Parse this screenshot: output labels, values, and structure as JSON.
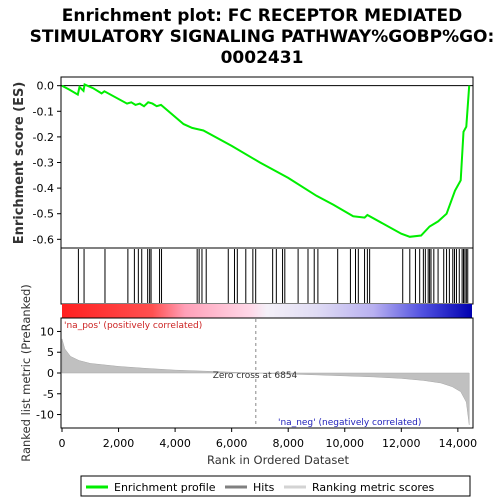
{
  "chart_data": {
    "type": "line",
    "title_lines": [
      "Enrichment plot: FC RECEPTOR MEDIATED",
      "STIMULATORY SIGNALING PATHWAY%GOBP%GO:",
      "0002431"
    ],
    "es_panel": {
      "ylabel": "Enrichment score (ES)",
      "ylim": [
        -0.63,
        0.03
      ],
      "yticks": [
        0.0,
        -0.1,
        -0.2,
        -0.3,
        -0.4,
        -0.5,
        -0.6
      ],
      "ytick_labels": [
        "0.0",
        "-0.1",
        "-0.2",
        "-0.3",
        "-0.4",
        "-0.5",
        "-0.6"
      ],
      "series_color": "#00ee00",
      "profile": [
        [
          0,
          0.0
        ],
        [
          250,
          -0.015
        ],
        [
          560,
          -0.035
        ],
        [
          620,
          -0.005
        ],
        [
          760,
          -0.02
        ],
        [
          800,
          0.005
        ],
        [
          1100,
          -0.01
        ],
        [
          1400,
          -0.03
        ],
        [
          1500,
          -0.022
        ],
        [
          2300,
          -0.07
        ],
        [
          2450,
          -0.065
        ],
        [
          2600,
          -0.075
        ],
        [
          2750,
          -0.07
        ],
        [
          2900,
          -0.08
        ],
        [
          3050,
          -0.065
        ],
        [
          3200,
          -0.07
        ],
        [
          3350,
          -0.08
        ],
        [
          3500,
          -0.075
        ],
        [
          4300,
          -0.15
        ],
        [
          4600,
          -0.165
        ],
        [
          5000,
          -0.175
        ],
        [
          6000,
          -0.235
        ],
        [
          7000,
          -0.3
        ],
        [
          8000,
          -0.36
        ],
        [
          9000,
          -0.43
        ],
        [
          9600,
          -0.465
        ],
        [
          10300,
          -0.51
        ],
        [
          10700,
          -0.515
        ],
        [
          10800,
          -0.505
        ],
        [
          12000,
          -0.578
        ],
        [
          12300,
          -0.59
        ],
        [
          12700,
          -0.585
        ],
        [
          13000,
          -0.55
        ],
        [
          13300,
          -0.53
        ],
        [
          13600,
          -0.5
        ],
        [
          13900,
          -0.41
        ],
        [
          14100,
          -0.37
        ],
        [
          14200,
          -0.18
        ],
        [
          14300,
          -0.16
        ],
        [
          14400,
          0.0
        ]
      ]
    },
    "hits": [
      580,
      780,
      1520,
      2330,
      2560,
      2700,
      2820,
      3030,
      3100,
      3150,
      3450,
      3520,
      4780,
      4850,
      4950,
      5100,
      5880,
      6100,
      6200,
      6500,
      6750,
      6850,
      7450,
      7580,
      7800,
      7880,
      8350,
      8700,
      8920,
      9050,
      9750,
      10200,
      10380,
      10480,
      10700,
      10800,
      10880,
      12050,
      12300,
      12500,
      12650,
      12780,
      12850,
      12950,
      13000,
      13050,
      13150,
      13300,
      13500,
      13600,
      13700,
      13820,
      13880,
      13950,
      14050,
      14150,
      14200,
      14250,
      14300,
      14350
    ],
    "rank_panel": {
      "ylabel": "Ranked list metric (PreRanked)",
      "ylim": [
        -13,
        13
      ],
      "yticks": [
        10,
        5,
        0,
        -5,
        -10
      ],
      "ytick_labels": [
        "10",
        "5",
        "0",
        "-5",
        "-10"
      ],
      "zero_cross_label": "Zero cross at 6854",
      "zero_cross": 6854,
      "pos_label": "'na_pos' (positively correlated)",
      "neg_label": "'na_neg' (negatively correlated)",
      "metric": [
        [
          0,
          8.2
        ],
        [
          100,
          5.8
        ],
        [
          300,
          4.0
        ],
        [
          600,
          3.0
        ],
        [
          1000,
          2.3
        ],
        [
          2000,
          1.6
        ],
        [
          3000,
          1.1
        ],
        [
          4000,
          0.7
        ],
        [
          5000,
          0.45
        ],
        [
          6000,
          0.2
        ],
        [
          6854,
          0.0
        ],
        [
          8000,
          -0.25
        ],
        [
          9000,
          -0.45
        ],
        [
          10000,
          -0.7
        ],
        [
          11000,
          -0.95
        ],
        [
          12000,
          -1.3
        ],
        [
          12800,
          -1.8
        ],
        [
          13400,
          -2.4
        ],
        [
          13800,
          -3.3
        ],
        [
          14100,
          -4.5
        ],
        [
          14300,
          -7.0
        ],
        [
          14400,
          -12.5
        ]
      ]
    },
    "xaxis": {
      "xlabel": "Rank in Ordered Dataset",
      "xlim": [
        0,
        14500
      ],
      "xticks": [
        0,
        2000,
        4000,
        6000,
        8000,
        10000,
        12000,
        14000
      ],
      "xtick_labels": [
        "0",
        "2,000",
        "4,000",
        "6,000",
        "8,000",
        "10,000",
        "12,000",
        "14,000"
      ]
    },
    "legend": {
      "placement": "bottom",
      "items": [
        {
          "label": "Enrichment profile",
          "color": "#00ee00"
        },
        {
          "label": "Hits",
          "color": "#808080"
        },
        {
          "label": "Ranking metric scores",
          "color": "#d3d3d3"
        }
      ]
    }
  }
}
